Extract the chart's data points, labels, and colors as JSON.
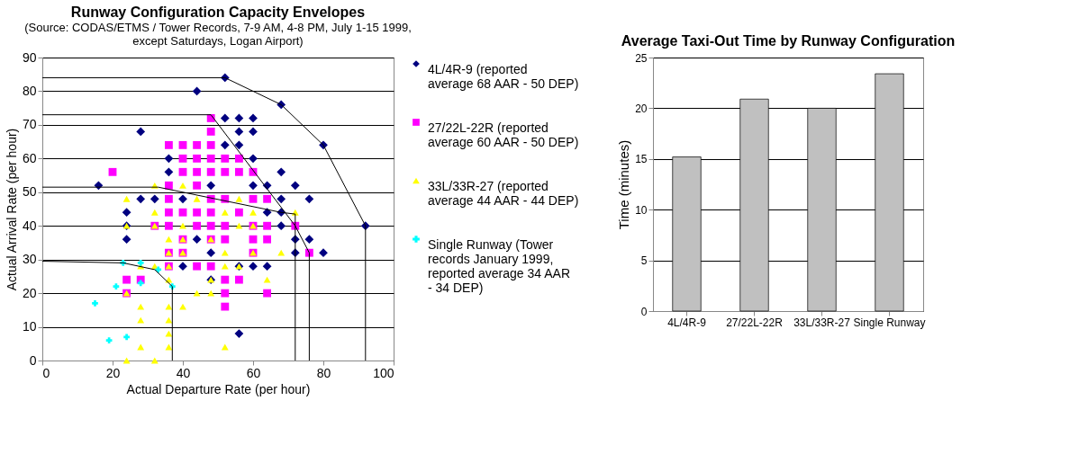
{
  "chart_data": [
    {
      "type": "scatter",
      "title": "Runway Configuration Capacity Envelopes",
      "subtitle": "(Source: CODAS/ETMS / Tower Records, 7-9 AM, 4-8 PM, July 1-15 1999, except Saturdays, Logan Airport)",
      "xlabel": "Actual Departure Rate (per hour)",
      "ylabel": "Actual Arrival Rate (per hour)",
      "xlim": [
        0,
        100
      ],
      "xticks": [
        0,
        20,
        40,
        60,
        80,
        100
      ],
      "ylim": [
        0,
        90
      ],
      "yticks": [
        0,
        10,
        20,
        30,
        40,
        50,
        60,
        70,
        80,
        90
      ],
      "grid": "y",
      "legend": "right",
      "series": [
        {
          "name": "4L/4R-9 (reported average 68 AAR - 50 DEP)",
          "color": "#000080",
          "marker": "diamond",
          "x": [
            52,
            44,
            68,
            80,
            52,
            56,
            60,
            28,
            56,
            60,
            52,
            56,
            36,
            60,
            36,
            68,
            16,
            48,
            60,
            64,
            72,
            28,
            32,
            40,
            68,
            76,
            24,
            64,
            68,
            24,
            68,
            92,
            24,
            44,
            72,
            76,
            48,
            72,
            80,
            40,
            56,
            60,
            64,
            48,
            56
          ],
          "values": [
            84,
            80,
            76,
            64,
            72,
            72,
            72,
            68,
            68,
            68,
            64,
            64,
            60,
            60,
            56,
            56,
            52,
            52,
            52,
            52,
            52,
            48,
            48,
            48,
            48,
            48,
            44,
            44,
            44,
            40,
            40,
            40,
            36,
            36,
            36,
            36,
            32,
            32,
            32,
            28,
            28,
            28,
            28,
            24,
            8
          ]
        },
        {
          "name": "27/22L-22R (reported average 60 AAR - 50 DEP)",
          "color": "#ff00ff",
          "marker": "square",
          "x": [
            48,
            48,
            36,
            40,
            44,
            48,
            40,
            44,
            48,
            52,
            56,
            20,
            40,
            44,
            48,
            52,
            56,
            60,
            36,
            44,
            36,
            48,
            52,
            60,
            64,
            36,
            40,
            44,
            48,
            56,
            32,
            36,
            44,
            48,
            52,
            60,
            64,
            72,
            40,
            48,
            52,
            60,
            64,
            36,
            40,
            60,
            76,
            36,
            44,
            48,
            24,
            28,
            52,
            56,
            24,
            52,
            64,
            52
          ],
          "values": [
            72,
            68,
            64,
            64,
            64,
            64,
            60,
            60,
            60,
            60,
            60,
            56,
            56,
            56,
            56,
            56,
            56,
            56,
            52,
            52,
            48,
            48,
            48,
            48,
            48,
            44,
            44,
            44,
            44,
            44,
            40,
            40,
            40,
            40,
            40,
            40,
            40,
            40,
            36,
            36,
            36,
            36,
            36,
            32,
            32,
            32,
            32,
            28,
            28,
            28,
            24,
            24,
            24,
            24,
            20,
            20,
            20,
            16
          ]
        },
        {
          "name": "33L/33R-27 (reported average 44 AAR - 44 DEP)",
          "color": "#ffff00",
          "marker": "triangle",
          "x": [
            32,
            40,
            24,
            44,
            56,
            32,
            52,
            60,
            72,
            24,
            32,
            40,
            56,
            60,
            36,
            40,
            48,
            36,
            40,
            52,
            60,
            68,
            28,
            32,
            36,
            52,
            56,
            36,
            48,
            64,
            24,
            44,
            48,
            28,
            36,
            40,
            28,
            36,
            36,
            28,
            36,
            52,
            24,
            32
          ],
          "values": [
            52,
            52,
            48,
            48,
            48,
            44,
            44,
            44,
            44,
            40,
            40,
            40,
            40,
            40,
            36,
            36,
            36,
            32,
            32,
            32,
            32,
            32,
            28,
            28,
            28,
            28,
            28,
            24,
            24,
            24,
            20,
            20,
            20,
            16,
            16,
            16,
            12,
            12,
            8,
            4,
            4,
            4,
            0,
            0
          ]
        },
        {
          "name": "Single Runway (Tower records January 1999, reported average 34 AAR - 34 DEP)",
          "color": "#00ffff",
          "marker": "cross",
          "x": [
            23,
            28,
            33,
            28,
            21,
            37,
            15,
            19,
            24
          ],
          "values": [
            29,
            29,
            27,
            23,
            22,
            22,
            17,
            6,
            7
          ]
        },
        {
          "type": "line",
          "color": "#000000",
          "x": [
            0,
            52,
            68,
            80,
            92,
            92
          ],
          "values": [
            84,
            84,
            76,
            64,
            40,
            0
          ]
        },
        {
          "type": "line",
          "color": "#000000",
          "x": [
            0,
            48,
            72,
            76,
            76
          ],
          "values": [
            73,
            73,
            40,
            32,
            0
          ]
        },
        {
          "type": "line",
          "color": "#000000",
          "x": [
            0,
            33,
            68,
            72,
            72
          ],
          "values": [
            51.5,
            51.5,
            44,
            43.5,
            0
          ]
        },
        {
          "type": "line",
          "color": "#000000",
          "x": [
            0,
            23,
            32,
            37,
            37
          ],
          "values": [
            29.5,
            29,
            27,
            22,
            0
          ]
        }
      ]
    },
    {
      "type": "bar",
      "title": "Average Taxi-Out Time by Runway Configuration",
      "ylabel": "Time (minutes)",
      "categories": [
        "4L/4R-9",
        "27/22L-22R",
        "33L/33R-27",
        "Single Runway"
      ],
      "values": [
        15.2,
        20.9,
        20.0,
        23.4
      ],
      "color": "#c0c0c0",
      "ylim": [
        0,
        25
      ],
      "yticks": [
        0,
        5,
        10,
        15,
        20,
        25
      ],
      "grid": "y"
    }
  ]
}
